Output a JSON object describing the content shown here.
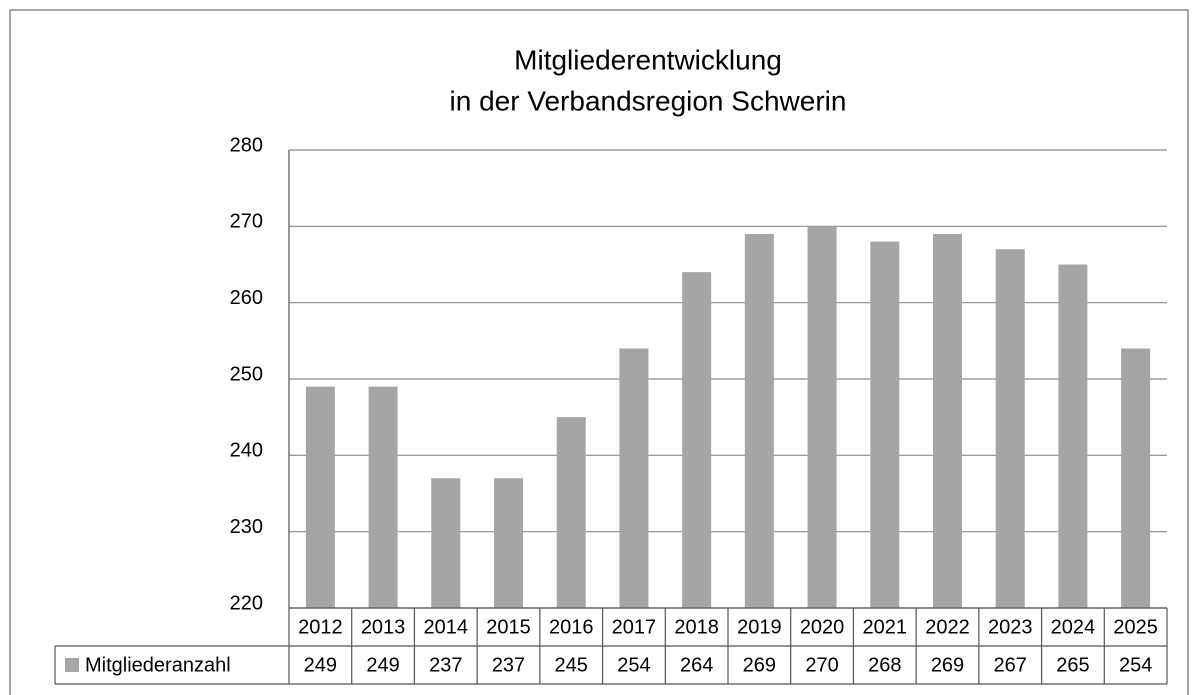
{
  "chart_data": {
    "type": "bar",
    "title": [
      "Mitgliederentwicklung",
      "in der Verbandsregion Schwerin"
    ],
    "categories": [
      "2012",
      "2013",
      "2014",
      "2015",
      "2016",
      "2017",
      "2018",
      "2019",
      "2020",
      "2021",
      "2022",
      "2023",
      "2024",
      "2025"
    ],
    "series": [
      {
        "name": "Mitgliederanzahl",
        "color": "#a5a5a5",
        "values": [
          249,
          249,
          237,
          237,
          245,
          254,
          264,
          269,
          270,
          268,
          269,
          267,
          265,
          254
        ]
      }
    ],
    "ylim": [
      220,
      280
    ],
    "yticks": [
      220,
      230,
      240,
      250,
      260,
      270,
      280
    ],
    "grid": true,
    "data_table": true
  }
}
